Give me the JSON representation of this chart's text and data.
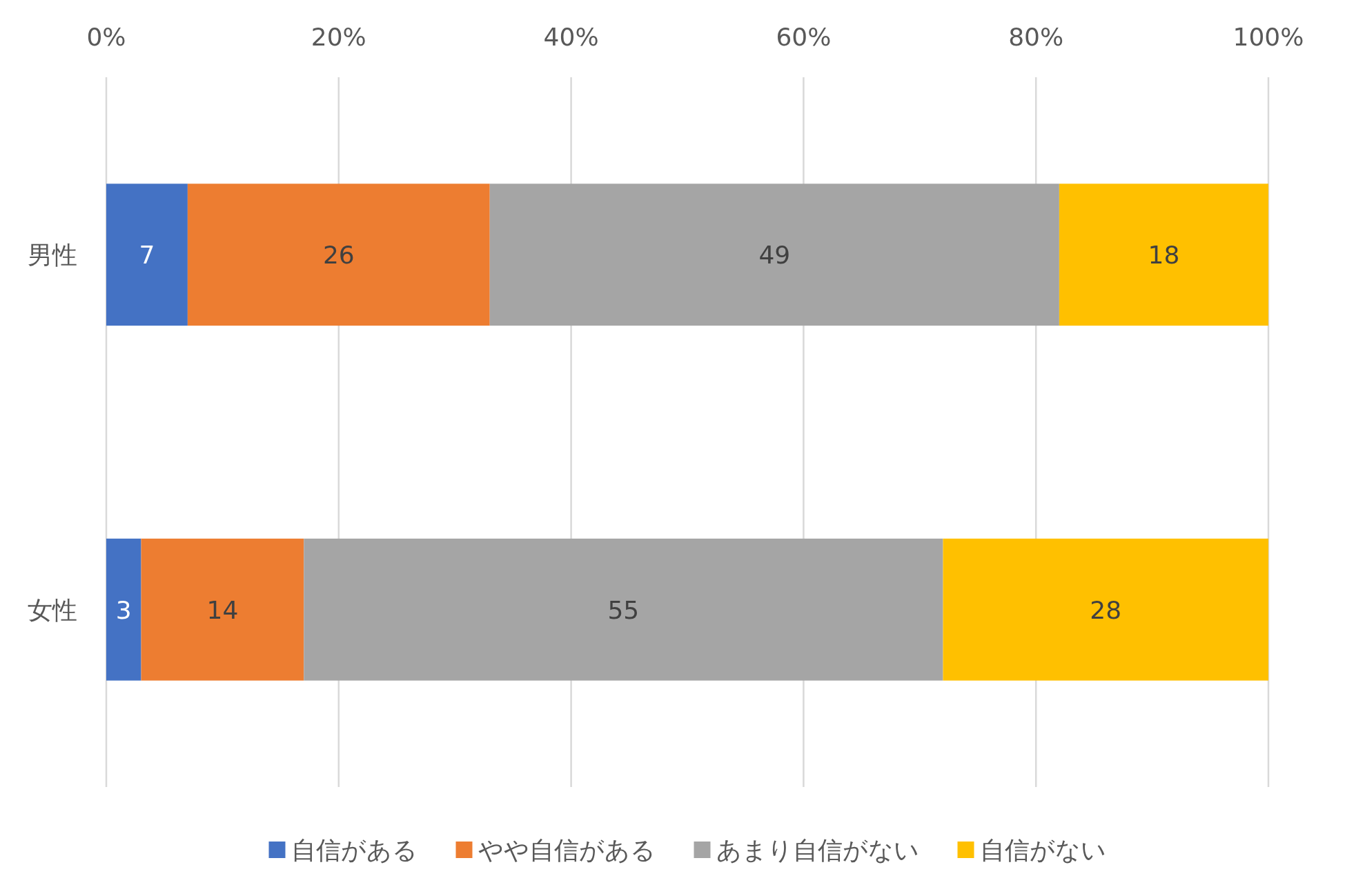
{
  "chart_data": {
    "type": "bar",
    "orientation": "horizontal",
    "stacked": true,
    "categories": [
      "男性",
      "女性"
    ],
    "series": [
      {
        "name": "自信がある",
        "color": "#4472c4",
        "values": [
          7,
          3
        ]
      },
      {
        "name": "やや自信がある",
        "color": "#ed7d31",
        "values": [
          26,
          14
        ]
      },
      {
        "name": "あまり自信がない",
        "color": "#a5a5a5",
        "values": [
          49,
          55
        ]
      },
      {
        "name": "自信がない",
        "color": "#ffc000",
        "values": [
          18,
          28
        ]
      }
    ],
    "xlim": [
      0,
      100
    ],
    "xticks": [
      {
        "value": 0,
        "label": "0%"
      },
      {
        "value": 20,
        "label": "20%"
      },
      {
        "value": 40,
        "label": "40%"
      },
      {
        "value": 60,
        "label": "60%"
      },
      {
        "value": 80,
        "label": "80%"
      },
      {
        "value": 100,
        "label": "100%"
      }
    ],
    "grid": "x",
    "legend": "bottom",
    "data_labels": true
  }
}
